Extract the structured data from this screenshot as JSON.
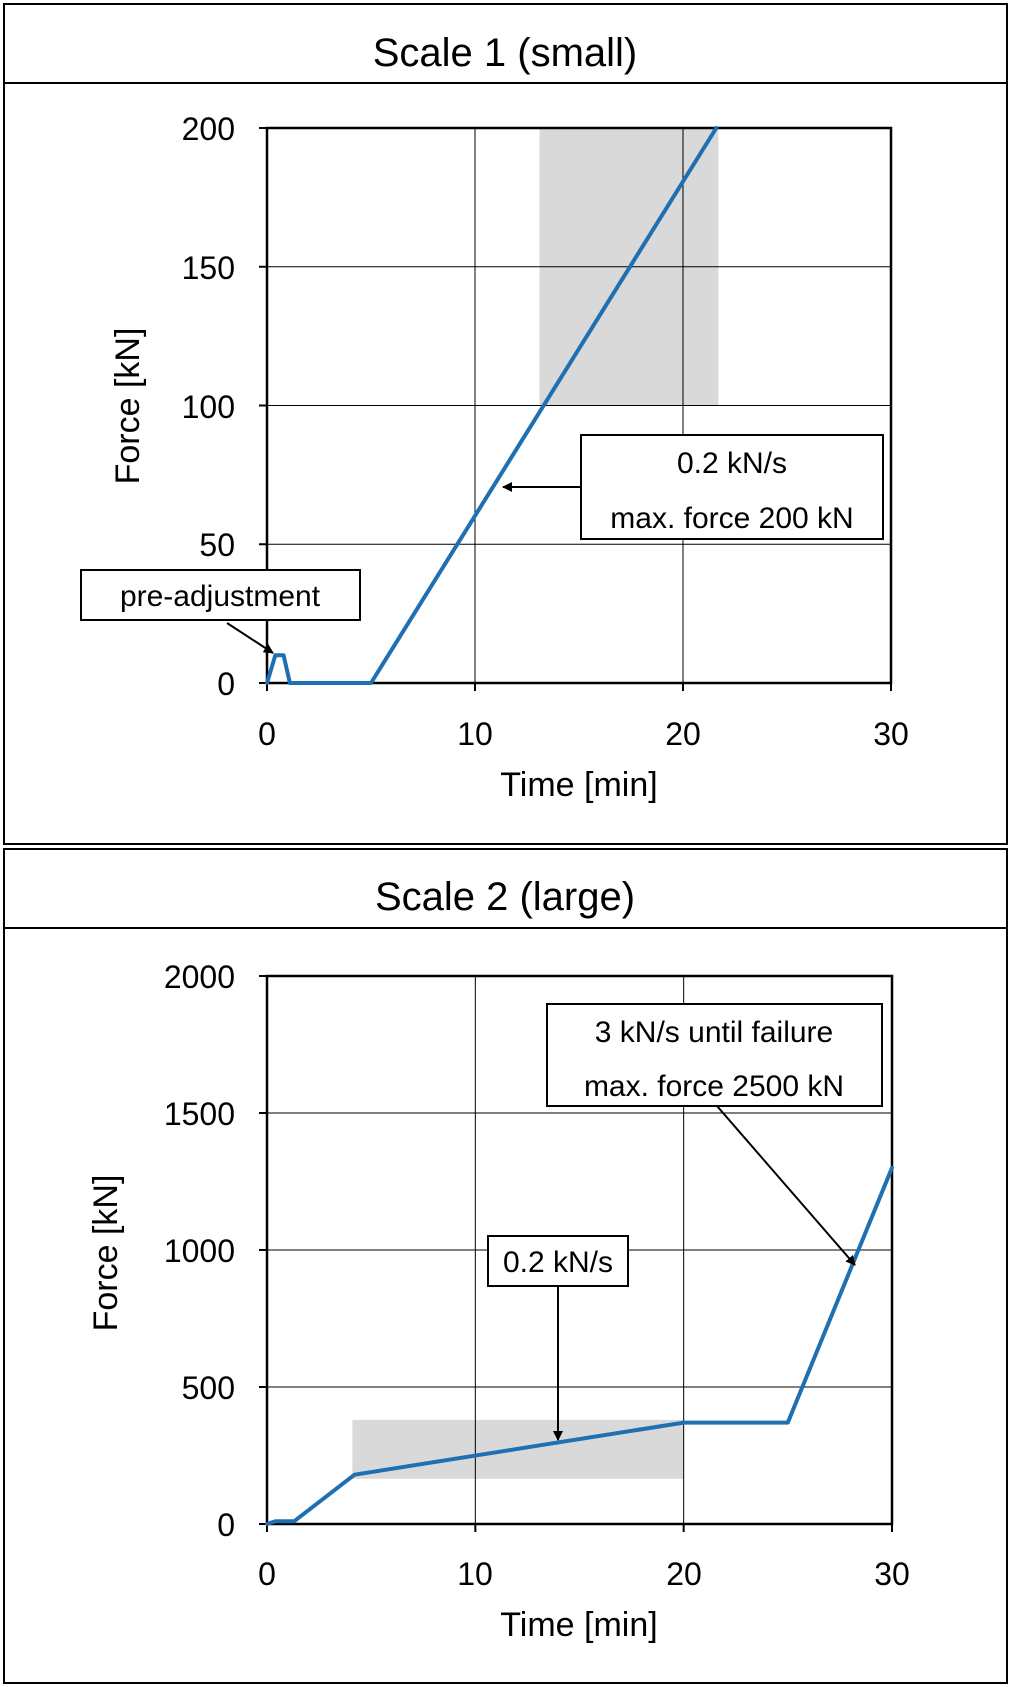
{
  "chart_data": [
    {
      "type": "line",
      "title": "Scale 1 (small)",
      "xlabel": "Time [min]",
      "ylabel": "Force [kN]",
      "xlim": [
        0,
        30
      ],
      "ylim": [
        0,
        200
      ],
      "xticks": [
        "0",
        "10",
        "20",
        "30"
      ],
      "yticks": [
        "0",
        "50",
        "100",
        "150",
        "200"
      ],
      "grid": true,
      "series_color": "#1f6fb2",
      "highlight_color": "#d9d9d9",
      "highlight": {
        "x": [
          13.1,
          21.7
        ],
        "y": [
          100,
          200
        ]
      },
      "series": [
        {
          "x": [
            0,
            0.4,
            0.8,
            1.1,
            5.0,
            21.6
          ],
          "y": [
            0,
            10,
            10,
            0,
            0,
            200
          ]
        }
      ],
      "annotations": [
        {
          "lines": [
            "pre-adjustment"
          ],
          "target": [
            0.25,
            10
          ]
        },
        {
          "lines": [
            "0.2 kN/s",
            "max. force 200 kN"
          ],
          "target": [
            11.0,
            73
          ]
        }
      ]
    },
    {
      "type": "line",
      "title": "Scale 2 (large)",
      "xlabel": "Time [min]",
      "ylabel": "Force [kN]",
      "xlim": [
        0,
        30
      ],
      "ylim": [
        0,
        2000
      ],
      "xticks": [
        "0",
        "10",
        "20",
        "30"
      ],
      "yticks": [
        "0",
        "500",
        "1000",
        "1500",
        "2000"
      ],
      "grid": true,
      "series_color": "#1f6fb2",
      "highlight_color": "#d9d9d9",
      "highlight": {
        "x": [
          4.1,
          20.0
        ],
        "y": [
          165,
          380
        ]
      },
      "series": [
        {
          "x": [
            0,
            0.4,
            1.3,
            4.2,
            20.0,
            25.0,
            30.0
          ],
          "y": [
            0,
            10,
            10,
            180,
            370,
            370,
            1300
          ]
        }
      ],
      "annotations": [
        {
          "lines": [
            "0.2 kN/s"
          ],
          "target": [
            13.9,
            300
          ]
        },
        {
          "lines": [
            "3 kN/s until failure",
            "max. force 2500 kN"
          ],
          "target": [
            28.1,
            950
          ]
        }
      ]
    }
  ]
}
